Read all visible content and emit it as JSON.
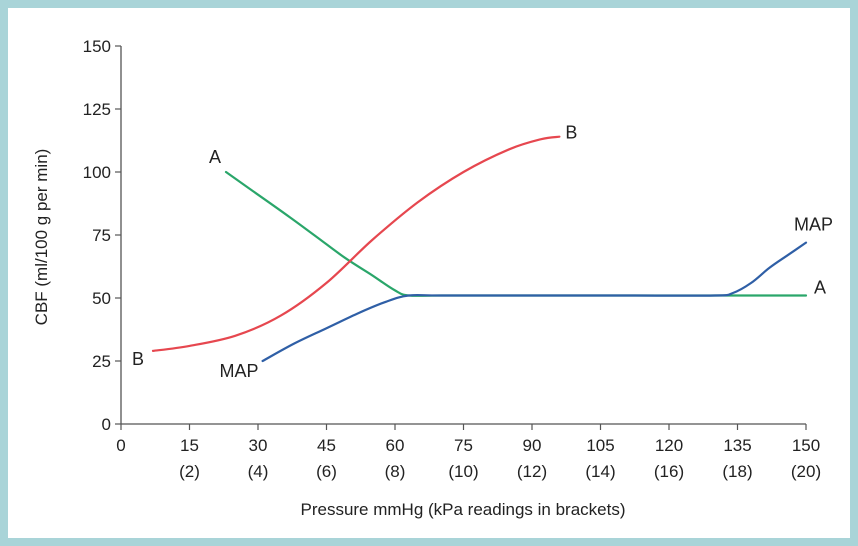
{
  "chart_data": {
    "type": "line",
    "xlabel": "Pressure mmHg (kPa readings in brackets)",
    "ylabel": "CBF (ml/100 g per min)",
    "xlim": [
      0,
      150
    ],
    "ylim": [
      0,
      150
    ],
    "x_ticks": [
      0,
      15,
      30,
      45,
      60,
      75,
      90,
      105,
      120,
      135,
      150
    ],
    "x_tick_labels": [
      "0",
      "15",
      "30",
      "45",
      "60",
      "75",
      "90",
      "105",
      "120",
      "135",
      "150"
    ],
    "x_tick_kpa_labels": [
      "",
      "(2)",
      "(4)",
      "(6)",
      "(8)",
      "(10)",
      "(12)",
      "(14)",
      "(16)",
      "(18)",
      "(20)"
    ],
    "y_ticks": [
      0,
      25,
      50,
      75,
      100,
      125,
      150
    ],
    "y_tick_labels": [
      "0",
      "25",
      "50",
      "75",
      "100",
      "125",
      "150"
    ],
    "grid": false,
    "series": [
      {
        "name": "A",
        "color": "#2aa66a",
        "start_label": "A",
        "end_label": "A",
        "x": [
          23,
          30,
          37,
          43,
          49,
          55,
          60,
          63,
          70,
          90,
          110,
          130,
          150
        ],
        "y": [
          100,
          91,
          82,
          74,
          66,
          59,
          53,
          51,
          51,
          51,
          51,
          51,
          51
        ]
      },
      {
        "name": "B",
        "color": "#e6474f",
        "start_label": "B",
        "end_label": "B",
        "x": [
          7,
          15,
          25,
          35,
          45,
          55,
          65,
          75,
          85,
          92,
          96
        ],
        "y": [
          29,
          31,
          35,
          43,
          56,
          73,
          88,
          100,
          109,
          113,
          114
        ]
      },
      {
        "name": "MAP",
        "color": "#2f5fa6",
        "start_label": "MAP",
        "end_label": "MAP",
        "x": [
          31,
          38,
          45,
          52,
          58,
          63,
          70,
          90,
          110,
          130,
          134,
          138,
          142,
          146,
          150
        ],
        "y": [
          25,
          32,
          38,
          44,
          48.5,
          51,
          51,
          51,
          51,
          51,
          52,
          56,
          62,
          67,
          72
        ]
      }
    ]
  }
}
